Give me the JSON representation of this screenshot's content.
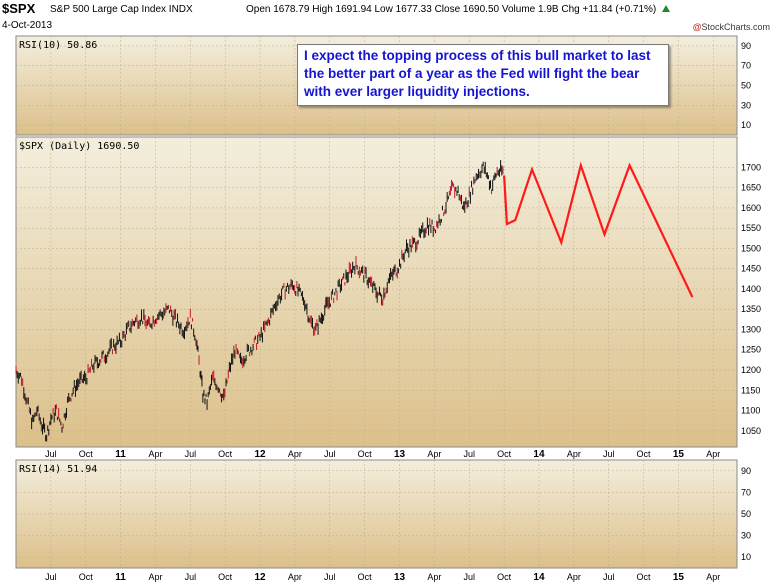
{
  "header": {
    "symbol": "$SPX",
    "name": "S&P 500 Large Cap Index",
    "exchange": "INDX",
    "date": "4-Oct-2013",
    "open_label": "Open",
    "open": "1678.79",
    "high_label": "High",
    "high": "1691.94",
    "low_label": "Low",
    "low": "1677.33",
    "close_label": "Close",
    "close": "1690.50",
    "volume_label": "Volume",
    "volume": "1.9B",
    "chg_label": "Chg",
    "chg": "+11.84 (+0.71%)",
    "chg_icon": "up-triangle-icon",
    "brand_prefix": "@",
    "brand": "StockCharts.com"
  },
  "annotation": "I expect the topping process of this bull market to last the better part of a year as the Fed will fight the bear with ever larger liquidity injections.",
  "colors": {
    "bg_top": "#f3eedd",
    "bg_bottom": "#dcc08a",
    "price_bar": "#111111",
    "down_bar": "#c0182c",
    "forecast": "#ff1a1a",
    "rsi_fill": "#dcc08a",
    "grid": "#bcae90",
    "text": "#000000"
  },
  "chart_data": [
    {
      "type": "line",
      "panel": "top",
      "title": "RSI(10) 50.86",
      "ylim": [
        0,
        100
      ],
      "yticks": [
        10,
        30,
        50,
        70,
        90
      ],
      "series": []
    },
    {
      "type": "line",
      "panel": "main",
      "title": "$SPX (Daily) 1690.50",
      "ylim": [
        1010,
        1775
      ],
      "yticks": [
        1050,
        1100,
        1150,
        1200,
        1250,
        1300,
        1350,
        1400,
        1450,
        1500,
        1550,
        1600,
        1650,
        1700
      ],
      "x_ticks": [
        "Jul",
        "Oct",
        "11",
        "Apr",
        "Jul",
        "Oct",
        "12",
        "Apr",
        "Jul",
        "Oct",
        "13",
        "Apr",
        "Jul",
        "Oct",
        "14",
        "Apr",
        "Jul",
        "Oct",
        "15",
        "Apr"
      ],
      "x_tick_pos": [
        2010.5,
        2010.75,
        2011.0,
        2011.25,
        2011.5,
        2011.75,
        2012.0,
        2012.25,
        2012.5,
        2012.75,
        2013.0,
        2013.25,
        2013.5,
        2013.75,
        2014.0,
        2014.25,
        2014.5,
        2014.75,
        2015.0,
        2015.25
      ],
      "xlim": [
        2010.25,
        2015.42
      ],
      "grid": true,
      "series": [
        {
          "role": "price",
          "x": [
            2010.25,
            2010.29,
            2010.33,
            2010.37,
            2010.4,
            2010.44,
            2010.47,
            2010.5,
            2010.54,
            2010.58,
            2010.62,
            2010.66,
            2010.7,
            2010.75,
            2010.8,
            2010.85,
            2010.9,
            2010.95,
            2011.0,
            2011.05,
            2011.1,
            2011.15,
            2011.2,
            2011.25,
            2011.3,
            2011.35,
            2011.4,
            2011.45,
            2011.5,
            2011.54,
            2011.57,
            2011.59,
            2011.62,
            2011.66,
            2011.7,
            2011.74,
            2011.78,
            2011.82,
            2011.86,
            2011.9,
            2011.95,
            2012.0,
            2012.06,
            2012.12,
            2012.18,
            2012.24,
            2012.28,
            2012.32,
            2012.36,
            2012.4,
            2012.44,
            2012.48,
            2012.52,
            2012.56,
            2012.6,
            2012.64,
            2012.68,
            2012.72,
            2012.76,
            2012.8,
            2012.84,
            2012.88,
            2012.92,
            2012.96,
            2013.0,
            2013.05,
            2013.1,
            2013.15,
            2013.2,
            2013.25,
            2013.3,
            2013.35,
            2013.38,
            2013.42,
            2013.46,
            2013.5,
            2013.55,
            2013.6,
            2013.63,
            2013.66,
            2013.7,
            2013.75
          ],
          "y": [
            1200,
            1180,
            1120,
            1070,
            1100,
            1060,
            1040,
            1080,
            1100,
            1060,
            1120,
            1150,
            1170,
            1180,
            1210,
            1225,
            1240,
            1260,
            1270,
            1300,
            1320,
            1330,
            1310,
            1330,
            1340,
            1350,
            1320,
            1300,
            1330,
            1280,
            1200,
            1140,
            1120,
            1180,
            1160,
            1130,
            1200,
            1250,
            1220,
            1240,
            1260,
            1280,
            1320,
            1370,
            1400,
            1410,
            1390,
            1370,
            1320,
            1300,
            1330,
            1360,
            1380,
            1400,
            1420,
            1440,
            1460,
            1445,
            1430,
            1410,
            1390,
            1380,
            1420,
            1440,
            1460,
            1500,
            1510,
            1530,
            1560,
            1550,
            1580,
            1620,
            1650,
            1640,
            1600,
            1630,
            1680,
            1700,
            1680,
            1650,
            1690,
            1690
          ]
        },
        {
          "role": "forecast",
          "x": [
            2013.75,
            2013.77,
            2013.83,
            2013.95,
            2014.16,
            2014.3,
            2014.47,
            2014.65,
            2015.1
          ],
          "y": [
            1680,
            1560,
            1570,
            1695,
            1515,
            1705,
            1535,
            1705,
            1380
          ]
        }
      ]
    },
    {
      "type": "line",
      "panel": "bottom",
      "title": "RSI(14) 51.94",
      "ylim": [
        0,
        100
      ],
      "yticks": [
        10,
        30,
        50,
        70,
        90
      ],
      "series": []
    }
  ]
}
